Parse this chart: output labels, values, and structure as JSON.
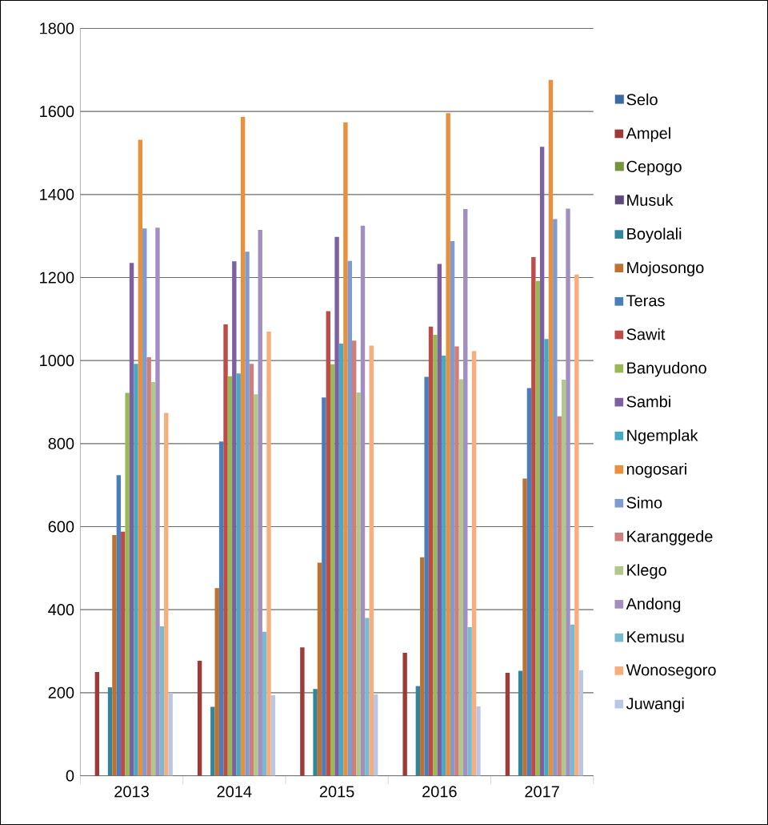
{
  "chart_data": {
    "type": "bar",
    "categories": [
      "2013",
      "2014",
      "2015",
      "2016",
      "2017"
    ],
    "series": [
      {
        "name": "Selo",
        "color": "#3d69a5",
        "values": [
          null,
          null,
          null,
          null,
          null
        ]
      },
      {
        "name": "Ampel",
        "color": "#9e3b38",
        "values": [
          250,
          277,
          309,
          296,
          248
        ]
      },
      {
        "name": "Cepogo",
        "color": "#77933c",
        "values": [
          null,
          null,
          null,
          null,
          null
        ]
      },
      {
        "name": "Musuk",
        "color": "#604a7b",
        "values": [
          null,
          null,
          null,
          null,
          null
        ]
      },
      {
        "name": "Boyolali",
        "color": "#31859c",
        "values": [
          213,
          166,
          209,
          216,
          253
        ]
      },
      {
        "name": "Mojosongo",
        "color": "#c0712f",
        "values": [
          580,
          452,
          513,
          526,
          716
        ]
      },
      {
        "name": "Teras",
        "color": "#4a7ebb",
        "values": [
          724,
          805,
          911,
          961,
          934
        ]
      },
      {
        "name": "Sawit",
        "color": "#be4b48",
        "values": [
          588,
          1087,
          1119,
          1082,
          1249
        ]
      },
      {
        "name": "Banyudono",
        "color": "#98b954",
        "values": [
          922,
          962,
          991,
          1062,
          1192
        ]
      },
      {
        "name": "Sambi",
        "color": "#7d60a0",
        "values": [
          1235,
          1239,
          1298,
          1233,
          1515
        ]
      },
      {
        "name": "Ngemplak",
        "color": "#46aac5",
        "values": [
          992,
          969,
          1041,
          1012,
          1052
        ]
      },
      {
        "name": "nogosari",
        "color": "#ea8f3b",
        "values": [
          1532,
          1587,
          1574,
          1596,
          1676
        ]
      },
      {
        "name": "Simo",
        "color": "#7e9ccf",
        "values": [
          1318,
          1262,
          1240,
          1288,
          1341
        ]
      },
      {
        "name": "Karanggede",
        "color": "#d07e7b",
        "values": [
          1008,
          992,
          1048,
          1034,
          866
        ]
      },
      {
        "name": "Klego",
        "color": "#b0c98a",
        "values": [
          948,
          919,
          923,
          955,
          954
        ]
      },
      {
        "name": "Andong",
        "color": "#a18fbf",
        "values": [
          1320,
          1315,
          1325,
          1365,
          1366
        ]
      },
      {
        "name": "Kemusu",
        "color": "#79bad0",
        "values": [
          360,
          347,
          380,
          358,
          364
        ]
      },
      {
        "name": "Wonosegoro",
        "color": "#f8ae7c",
        "values": [
          874,
          1070,
          1036,
          1023,
          1207
        ]
      },
      {
        "name": "Juwangi",
        "color": "#b9c7e4",
        "values": [
          200,
          194,
          196,
          167,
          254
        ]
      }
    ],
    "ylim": [
      0,
      1800
    ],
    "yticks": [
      0,
      200,
      400,
      600,
      800,
      1000,
      1200,
      1400,
      1600,
      1800
    ],
    "grid": "y",
    "legend": "right"
  }
}
